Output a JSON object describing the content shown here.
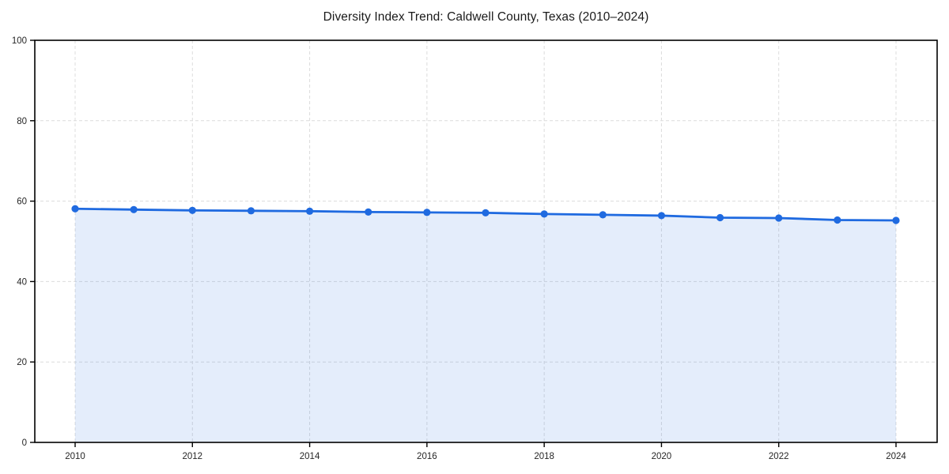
{
  "page": {
    "background_color": "#ffffff"
  },
  "chart_data": {
    "type": "line",
    "title": "Diversity Index Trend: Caldwell County, Texas (2010–2024)",
    "x": [
      2010,
      2011,
      2012,
      2013,
      2014,
      2015,
      2016,
      2017,
      2018,
      2019,
      2020,
      2021,
      2022,
      2023,
      2024
    ],
    "series": [
      {
        "name": "Diversity Index",
        "values": [
          58.1,
          57.9,
          57.7,
          57.6,
          57.5,
          57.3,
          57.2,
          57.1,
          56.8,
          56.6,
          56.4,
          55.9,
          55.8,
          55.3,
          55.2
        ]
      }
    ],
    "xlabel": "",
    "ylabel": "",
    "xlim": [
      2010,
      2024
    ],
    "ylim": [
      0,
      100
    ],
    "xticks": [
      2010,
      2012,
      2014,
      2016,
      2018,
      2020,
      2022,
      2024
    ],
    "yticks": [
      0,
      20,
      40,
      60,
      80,
      100
    ],
    "grid": true,
    "grid_style": "dashed",
    "legend": false,
    "marker": "circle",
    "style": {
      "line_color": "#1f6ae0",
      "marker_color": "#1f6ae0",
      "fill_color": "#1f6ae0",
      "fill_opacity": 0.12,
      "grid_color": "#dcdcdc",
      "spine_color": "#000000",
      "tick_text_color": "#262626",
      "title_color": "#1a1a1a"
    }
  }
}
